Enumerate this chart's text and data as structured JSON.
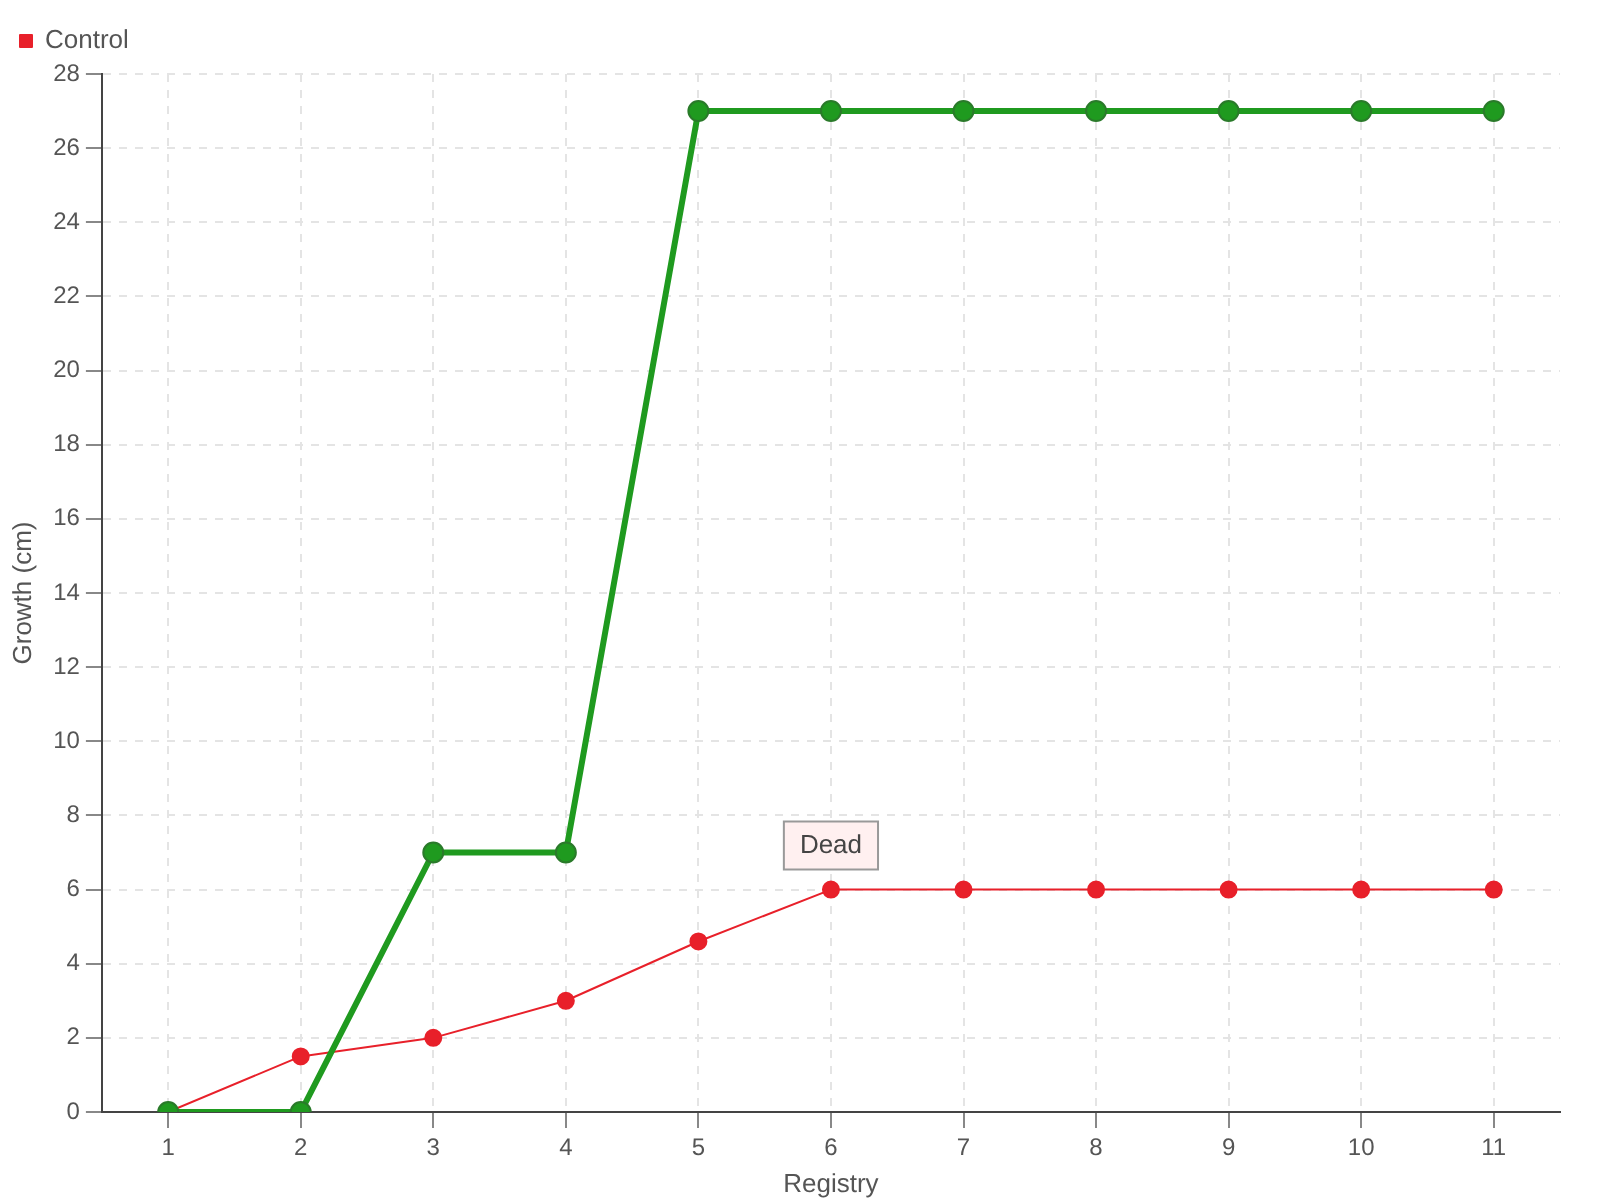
{
  "chart_data": {
    "type": "line",
    "xlabel": "Registry",
    "ylabel": "Growth (cm)",
    "categories": [
      "1",
      "2",
      "3",
      "4",
      "5",
      "6",
      "7",
      "8",
      "9",
      "10",
      "11"
    ],
    "series": [
      {
        "color": "#1f9a1f",
        "values": [
          0,
          0,
          7,
          7,
          27,
          27,
          27,
          27,
          27,
          27,
          27
        ]
      },
      {
        "name": "Control",
        "color": "#e8202a",
        "values": [
          0,
          1.5,
          2,
          3,
          4.6,
          6,
          6,
          6,
          6,
          6,
          6
        ]
      }
    ],
    "ylim": [
      0,
      28
    ],
    "yticks": [
      0,
      2,
      4,
      6,
      8,
      10,
      12,
      14,
      16,
      18,
      20,
      22,
      24,
      26,
      28
    ],
    "annotations": [
      {
        "text": "Dead",
        "x": "6",
        "y": 6
      }
    ],
    "grid": true,
    "legend": "top left",
    "marker": "circle",
    "line_style": "solid"
  }
}
